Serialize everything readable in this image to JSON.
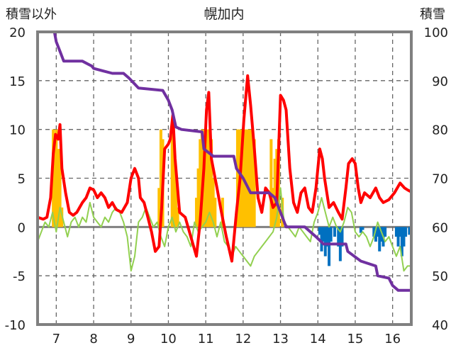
{
  "chart_data": {
    "type": "line",
    "title": "幌加内",
    "y_left_label": "積雪以外",
    "y_right_label": "積雪",
    "x_ticks": [
      "7",
      "8",
      "9",
      "10",
      "11",
      "12",
      "13",
      "14",
      "15",
      "16"
    ],
    "y_left_ticks": [
      "20",
      "15",
      "10",
      "5",
      "0",
      "-5",
      "-10"
    ],
    "y_right_ticks": [
      "100",
      "90",
      "80",
      "70",
      "60",
      "50",
      "40"
    ],
    "x_range": [
      6.5,
      16.5
    ],
    "y_left_range": [
      -10,
      20
    ],
    "y_right_range": [
      40,
      100
    ],
    "grid": "vertical-dashed",
    "series": [
      {
        "color": "#ff0000",
        "axis": "left",
        "points": [
          [
            6.5,
            1.0
          ],
          [
            6.65,
            0.8
          ],
          [
            6.75,
            1.0
          ],
          [
            6.85,
            3.0
          ],
          [
            6.92,
            7.5
          ],
          [
            6.98,
            9.5
          ],
          [
            7.05,
            9.0
          ],
          [
            7.1,
            10.5
          ],
          [
            7.15,
            6.0
          ],
          [
            7.25,
            3.5
          ],
          [
            7.35,
            1.5
          ],
          [
            7.45,
            1.2
          ],
          [
            7.55,
            1.5
          ],
          [
            7.7,
            2.5
          ],
          [
            7.8,
            3.0
          ],
          [
            7.9,
            4.0
          ],
          [
            8.0,
            3.8
          ],
          [
            8.1,
            3.0
          ],
          [
            8.2,
            3.5
          ],
          [
            8.3,
            3.0
          ],
          [
            8.4,
            2.0
          ],
          [
            8.5,
            2.5
          ],
          [
            8.6,
            1.8
          ],
          [
            8.75,
            1.5
          ],
          [
            8.9,
            2.5
          ],
          [
            9.0,
            5.0
          ],
          [
            9.1,
            6.0
          ],
          [
            9.2,
            5.0
          ],
          [
            9.25,
            3.0
          ],
          [
            9.35,
            2.5
          ],
          [
            9.45,
            1.0
          ],
          [
            9.55,
            -0.5
          ],
          [
            9.65,
            -2.5
          ],
          [
            9.75,
            -2.0
          ],
          [
            9.82,
            2.0
          ],
          [
            9.9,
            8.0
          ],
          [
            10.0,
            8.5
          ],
          [
            10.05,
            9.0
          ],
          [
            10.12,
            11.5
          ],
          [
            10.18,
            7.0
          ],
          [
            10.3,
            1.5
          ],
          [
            10.45,
            1.0
          ],
          [
            10.6,
            -1.0
          ],
          [
            10.75,
            -3.0
          ],
          [
            10.85,
            0.5
          ],
          [
            10.95,
            6.0
          ],
          [
            11.02,
            12.0
          ],
          [
            11.08,
            13.8
          ],
          [
            11.15,
            7.0
          ],
          [
            11.3,
            4.0
          ],
          [
            11.42,
            1.5
          ],
          [
            11.55,
            -1.0
          ],
          [
            11.7,
            -3.5
          ],
          [
            11.82,
            1.5
          ],
          [
            11.92,
            5.0
          ],
          [
            12.02,
            11.0
          ],
          [
            12.12,
            15.5
          ],
          [
            12.2,
            12.5
          ],
          [
            12.3,
            8.0
          ],
          [
            12.4,
            3.0
          ],
          [
            12.5,
            1.5
          ],
          [
            12.6,
            4.0
          ],
          [
            12.7,
            3.5
          ],
          [
            12.8,
            2.0
          ],
          [
            12.9,
            2.5
          ],
          [
            13.0,
            13.5
          ],
          [
            13.08,
            13.0
          ],
          [
            13.15,
            12.0
          ],
          [
            13.25,
            6.0
          ],
          [
            13.35,
            2.5
          ],
          [
            13.45,
            1.5
          ],
          [
            13.55,
            3.5
          ],
          [
            13.65,
            4.0
          ],
          [
            13.75,
            2.0
          ],
          [
            13.85,
            1.5
          ],
          [
            13.95,
            4.0
          ],
          [
            14.05,
            8.0
          ],
          [
            14.12,
            7.0
          ],
          [
            14.18,
            5.0
          ],
          [
            14.3,
            2.0
          ],
          [
            14.42,
            2.5
          ],
          [
            14.55,
            1.5
          ],
          [
            14.65,
            0.8
          ],
          [
            14.75,
            4.0
          ],
          [
            14.82,
            6.5
          ],
          [
            14.92,
            7.0
          ],
          [
            15.0,
            6.5
          ],
          [
            15.08,
            4.0
          ],
          [
            15.15,
            2.5
          ],
          [
            15.25,
            3.5
          ],
          [
            15.4,
            3.0
          ],
          [
            15.55,
            4.0
          ],
          [
            15.65,
            3.0
          ],
          [
            15.75,
            2.5
          ],
          [
            15.9,
            2.8
          ],
          [
            16.05,
            3.5
          ],
          [
            16.2,
            4.5
          ],
          [
            16.32,
            4.0
          ],
          [
            16.4,
            3.8
          ],
          [
            16.5,
            3.6
          ]
        ]
      },
      {
        "color": "#92d050",
        "axis": "left",
        "points": [
          [
            6.5,
            -1.5
          ],
          [
            6.6,
            -0.5
          ],
          [
            6.7,
            0.5
          ],
          [
            6.8,
            0.0
          ],
          [
            6.9,
            1.5
          ],
          [
            7.0,
            -0.5
          ],
          [
            7.1,
            2.0
          ],
          [
            7.2,
            0.5
          ],
          [
            7.3,
            -1.0
          ],
          [
            7.4,
            0.5
          ],
          [
            7.5,
            1.0
          ],
          [
            7.6,
            0.0
          ],
          [
            7.7,
            1.0
          ],
          [
            7.8,
            0.5
          ],
          [
            7.9,
            2.5
          ],
          [
            8.0,
            1.0
          ],
          [
            8.1,
            0.5
          ],
          [
            8.2,
            0.0
          ],
          [
            8.3,
            1.0
          ],
          [
            8.4,
            0.5
          ],
          [
            8.5,
            1.5
          ],
          [
            8.6,
            2.0
          ],
          [
            8.7,
            1.5
          ],
          [
            8.8,
            0.5
          ],
          [
            8.9,
            -1.0
          ],
          [
            9.0,
            -4.5
          ],
          [
            9.1,
            -3.0
          ],
          [
            9.2,
            0.5
          ],
          [
            9.3,
            1.0
          ],
          [
            9.4,
            2.0
          ],
          [
            9.5,
            1.0
          ],
          [
            9.6,
            0.0
          ],
          [
            9.7,
            0.5
          ],
          [
            9.8,
            -1.0
          ],
          [
            9.9,
            -2.0
          ],
          [
            10.0,
            0.0
          ],
          [
            10.1,
            1.0
          ],
          [
            10.2,
            -0.5
          ],
          [
            10.3,
            0.5
          ],
          [
            10.4,
            -0.5
          ],
          [
            10.5,
            -1.0
          ],
          [
            10.6,
            -2.0
          ],
          [
            10.7,
            0.5
          ],
          [
            10.8,
            -0.5
          ],
          [
            10.9,
            0.0
          ],
          [
            11.0,
            0.5
          ],
          [
            11.1,
            1.5
          ],
          [
            11.2,
            0.5
          ],
          [
            11.3,
            -1.0
          ],
          [
            11.4,
            0.5
          ],
          [
            11.5,
            -1.5
          ],
          [
            11.6,
            -2.0
          ],
          [
            11.7,
            -3.0
          ],
          [
            11.8,
            -2.0
          ],
          [
            11.9,
            -2.5
          ],
          [
            12.0,
            -3.0
          ],
          [
            12.1,
            -3.5
          ],
          [
            12.2,
            -4.0
          ],
          [
            12.3,
            -3.0
          ],
          [
            12.4,
            -2.5
          ],
          [
            12.5,
            -2.0
          ],
          [
            12.6,
            -1.5
          ],
          [
            12.7,
            -1.0
          ],
          [
            12.8,
            -0.5
          ],
          [
            12.9,
            1.0
          ],
          [
            13.0,
            4.0
          ],
          [
            13.05,
            2.0
          ],
          [
            13.1,
            0.5
          ],
          [
            13.2,
            0.0
          ],
          [
            13.3,
            -0.5
          ],
          [
            13.4,
            -1.0
          ],
          [
            13.5,
            0.0
          ],
          [
            13.6,
            -0.5
          ],
          [
            13.7,
            -1.0
          ],
          [
            13.8,
            -1.5
          ],
          [
            13.9,
            0.5
          ],
          [
            14.0,
            1.5
          ],
          [
            14.1,
            3.0
          ],
          [
            14.2,
            1.5
          ],
          [
            14.3,
            0.0
          ],
          [
            14.4,
            1.0
          ],
          [
            14.5,
            0.0
          ],
          [
            14.6,
            -0.5
          ],
          [
            14.7,
            0.5
          ],
          [
            14.8,
            2.0
          ],
          [
            14.9,
            1.5
          ],
          [
            15.0,
            -0.5
          ],
          [
            15.1,
            -1.0
          ],
          [
            15.2,
            -0.5
          ],
          [
            15.3,
            -1.0
          ],
          [
            15.4,
            -2.0
          ],
          [
            15.5,
            -1.0
          ],
          [
            15.6,
            0.5
          ],
          [
            15.7,
            -0.5
          ],
          [
            15.8,
            -1.5
          ],
          [
            15.9,
            -1.0
          ],
          [
            16.0,
            -2.0
          ],
          [
            16.1,
            -3.0
          ],
          [
            16.2,
            -2.0
          ],
          [
            16.3,
            -4.5
          ],
          [
            16.4,
            -4.0
          ],
          [
            16.5,
            -4.0
          ]
        ]
      },
      {
        "color": "#7030a0",
        "axis": "right",
        "points": [
          [
            6.5,
            100
          ],
          [
            6.95,
            100
          ],
          [
            7.0,
            98
          ],
          [
            7.1,
            96
          ],
          [
            7.2,
            94
          ],
          [
            7.7,
            94
          ],
          [
            7.95,
            93
          ],
          [
            8.0,
            92.5
          ],
          [
            8.25,
            92
          ],
          [
            8.5,
            91.5
          ],
          [
            8.8,
            91.5
          ],
          [
            8.95,
            90.5
          ],
          [
            9.2,
            88.5
          ],
          [
            9.85,
            88
          ],
          [
            10.0,
            86
          ],
          [
            10.1,
            84
          ],
          [
            10.2,
            80.5
          ],
          [
            10.35,
            80
          ],
          [
            10.9,
            79.5
          ],
          [
            10.95,
            76
          ],
          [
            11.2,
            74.5
          ],
          [
            11.75,
            74.5
          ],
          [
            11.82,
            72
          ],
          [
            12.0,
            70
          ],
          [
            12.2,
            67
          ],
          [
            12.7,
            67
          ],
          [
            12.85,
            66
          ],
          [
            13.0,
            63
          ],
          [
            13.15,
            60
          ],
          [
            13.65,
            60
          ],
          [
            13.8,
            59
          ],
          [
            13.95,
            58
          ],
          [
            14.15,
            56.5
          ],
          [
            14.75,
            56.5
          ],
          [
            14.8,
            55
          ],
          [
            15.15,
            53
          ],
          [
            15.55,
            52
          ],
          [
            15.6,
            50
          ],
          [
            15.9,
            49.5
          ],
          [
            16.0,
            48
          ],
          [
            16.15,
            47
          ],
          [
            16.5,
            47
          ]
        ]
      },
      {
        "color": "#ffc000",
        "axis": "left",
        "type": "bar",
        "points": [
          [
            6.92,
            10
          ],
          [
            6.96,
            9
          ],
          [
            7.0,
            10
          ],
          [
            7.05,
            8
          ],
          [
            7.1,
            8
          ],
          [
            7.15,
            2
          ],
          [
            9.75,
            4
          ],
          [
            9.8,
            10
          ],
          [
            9.85,
            9
          ],
          [
            10.1,
            10
          ],
          [
            10.15,
            9
          ],
          [
            10.2,
            6
          ],
          [
            10.25,
            2
          ],
          [
            10.75,
            3
          ],
          [
            10.8,
            6
          ],
          [
            10.85,
            9
          ],
          [
            10.9,
            10
          ],
          [
            10.95,
            10
          ],
          [
            11.0,
            10
          ],
          [
            11.05,
            10
          ],
          [
            11.1,
            10
          ],
          [
            11.15,
            9
          ],
          [
            11.2,
            5
          ],
          [
            11.25,
            3
          ],
          [
            11.45,
            3
          ],
          [
            11.85,
            10
          ],
          [
            11.9,
            10
          ],
          [
            11.95,
            10
          ],
          [
            12.0,
            10
          ],
          [
            12.05,
            10
          ],
          [
            12.1,
            10
          ],
          [
            12.15,
            10
          ],
          [
            12.2,
            10
          ],
          [
            12.25,
            10
          ],
          [
            12.3,
            9
          ],
          [
            12.75,
            9
          ],
          [
            12.8,
            4
          ],
          [
            12.85,
            7
          ],
          [
            12.9,
            8
          ],
          [
            12.95,
            9
          ],
          [
            13.05,
            3
          ]
        ]
      },
      {
        "color": "#0070c0",
        "axis": "left",
        "type": "bar",
        "points": [
          [
            14.05,
            -0.8
          ],
          [
            14.1,
            -2.5
          ],
          [
            14.15,
            -1.5
          ],
          [
            14.2,
            -3.0
          ],
          [
            14.25,
            -2.0
          ],
          [
            14.3,
            -4.0
          ],
          [
            14.35,
            -1.5
          ],
          [
            14.45,
            -1.0
          ],
          [
            14.55,
            -2.0
          ],
          [
            14.6,
            -3.5
          ],
          [
            14.65,
            -2.0
          ],
          [
            15.15,
            -0.6
          ],
          [
            15.2,
            -0.3
          ],
          [
            15.5,
            -1.0
          ],
          [
            15.55,
            -1.5
          ],
          [
            15.6,
            -1.0
          ],
          [
            15.65,
            -2.5
          ],
          [
            15.7,
            -1.5
          ],
          [
            15.75,
            -2.0
          ],
          [
            15.8,
            -1.0
          ],
          [
            16.1,
            -1.0
          ],
          [
            16.15,
            -2.0
          ],
          [
            16.2,
            -1.0
          ],
          [
            16.25,
            -3.0
          ],
          [
            16.3,
            -2.0
          ],
          [
            16.35,
            -1.0
          ],
          [
            16.45,
            -0.8
          ]
        ]
      }
    ]
  }
}
